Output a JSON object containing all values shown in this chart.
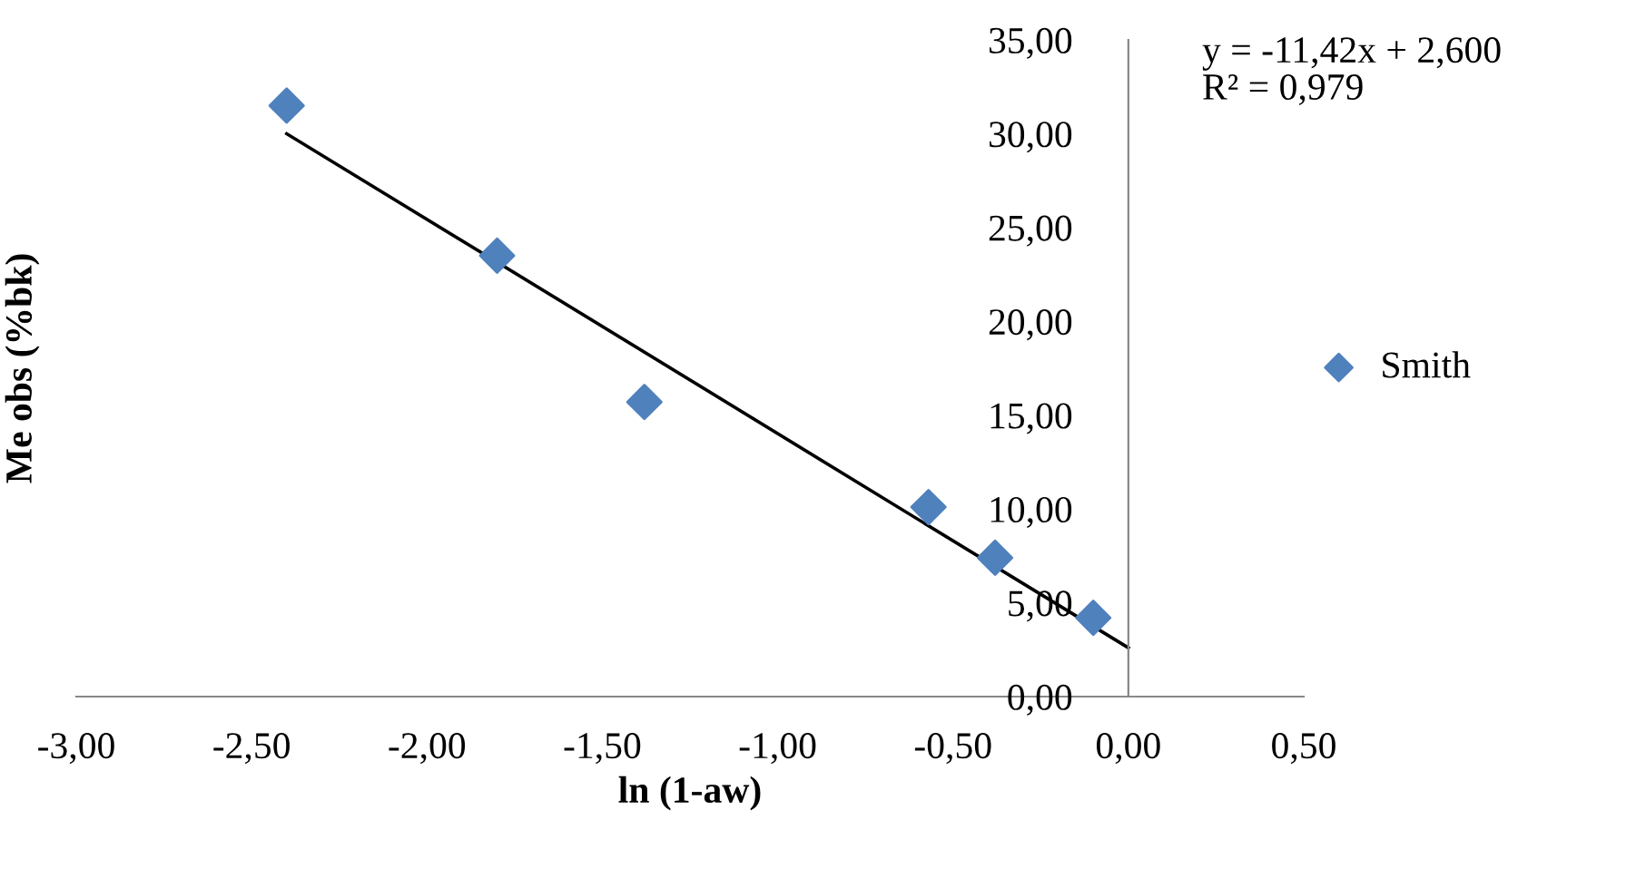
{
  "chart_data": {
    "type": "scatter",
    "xlabel": "ln (1-aw)",
    "ylabel": "Me obs (%bk)",
    "annotations": [
      "y = -11,42x + 2,600\nR² = 0,979"
    ],
    "series": [
      {
        "name": "Smith",
        "color": "#4f81bd",
        "marker": "diamond",
        "x": [
          -2.4,
          -1.8,
          -1.38,
          -0.57,
          -0.38,
          -0.1
        ],
        "values": [
          31.5,
          23.5,
          15.7,
          10.1,
          7.4,
          4.2
        ]
      },
      {
        "type": "line",
        "color": "#000000",
        "marker": "none",
        "line_style": "solid",
        "x": [
          -2.4,
          0.0
        ],
        "values": [
          30.0,
          2.6
        ]
      }
    ],
    "xlim": [
      -3,
      0.5
    ],
    "ylim": [
      0,
      35
    ],
    "xticks": [
      {
        "value": -3,
        "label": "-3,00"
      },
      {
        "value": -2.5,
        "label": "-2,50"
      },
      {
        "value": -2,
        "label": "-2,00"
      },
      {
        "value": -1.5,
        "label": "-1,50"
      },
      {
        "value": -1,
        "label": "-1,00"
      },
      {
        "value": -0.5,
        "label": "-0,50"
      },
      {
        "value": 0,
        "label": "0,00"
      },
      {
        "value": 0.5,
        "label": "0,50"
      }
    ],
    "yticks": [
      {
        "value": 0,
        "label": "0,00"
      },
      {
        "value": 5,
        "label": "5,00"
      },
      {
        "value": 10,
        "label": "10,00"
      },
      {
        "value": 15,
        "label": "15,00"
      },
      {
        "value": 20,
        "label": "20,00"
      },
      {
        "value": 25,
        "label": "25,00"
      },
      {
        "value": 30,
        "label": "30,00"
      },
      {
        "value": 35,
        "label": "35,00"
      }
    ],
    "grid": false,
    "legend": "right"
  }
}
